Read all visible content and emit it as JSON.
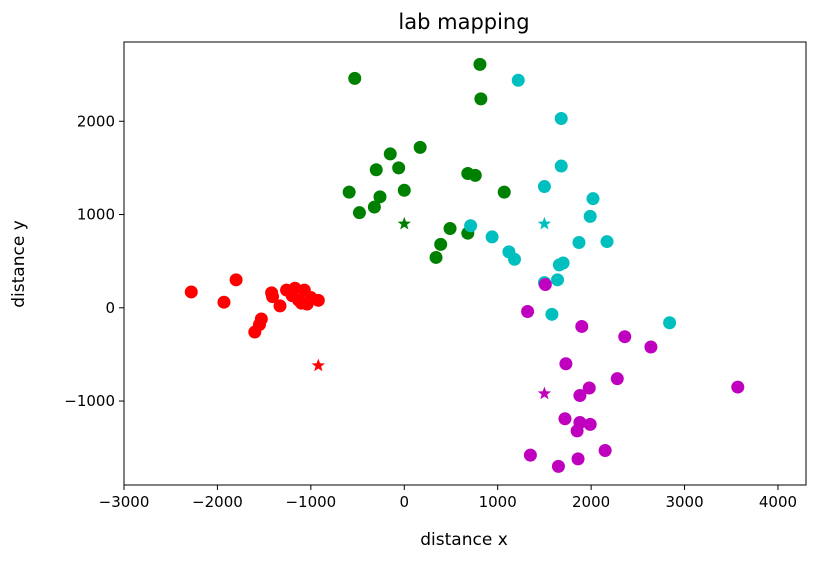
{
  "chart_data": {
    "type": "scatter",
    "title": "lab mapping",
    "xlabel": "distance x",
    "ylabel": "distance y",
    "xlim": [
      -3000,
      4300
    ],
    "ylim": [
      -1900,
      2850
    ],
    "xticks": [
      -3000,
      -2000,
      -1000,
      0,
      1000,
      2000,
      3000,
      4000
    ],
    "yticks": [
      -1000,
      0,
      1000,
      2000
    ],
    "xtick_labels": [
      "−3000",
      "−2000",
      "−1000",
      "0",
      "1000",
      "2000",
      "3000",
      "4000"
    ],
    "ytick_labels": [
      "−1000",
      "0",
      "1000",
      "2000"
    ],
    "grid": false,
    "series": [
      {
        "color": "#ff0000",
        "marker": "circle",
        "points": [
          [
            -2280,
            170
          ],
          [
            -1930,
            60
          ],
          [
            -1800,
            300
          ],
          [
            -1600,
            -260
          ],
          [
            -1550,
            -180
          ],
          [
            -1530,
            -120
          ],
          [
            -1420,
            160
          ],
          [
            -1410,
            120
          ],
          [
            -1330,
            20
          ],
          [
            -1260,
            190
          ],
          [
            -1200,
            130
          ],
          [
            -1170,
            210
          ],
          [
            -1130,
            80
          ],
          [
            -1100,
            50
          ],
          [
            -1070,
            190
          ],
          [
            -1040,
            40
          ],
          [
            -1000,
            110
          ],
          [
            -920,
            80
          ]
        ],
        "centroid": [
          -920,
          -620
        ]
      },
      {
        "color": "#008000",
        "marker": "circle",
        "points": [
          [
            -530,
            2460
          ],
          [
            -590,
            1240
          ],
          [
            -480,
            1020
          ],
          [
            -320,
            1080
          ],
          [
            -300,
            1480
          ],
          [
            -260,
            1190
          ],
          [
            -150,
            1650
          ],
          [
            -60,
            1500
          ],
          [
            0,
            1260
          ],
          [
            170,
            1720
          ],
          [
            340,
            540
          ],
          [
            390,
            680
          ],
          [
            490,
            850
          ],
          [
            680,
            800
          ],
          [
            680,
            1440
          ],
          [
            760,
            1420
          ],
          [
            810,
            2610
          ],
          [
            820,
            2240
          ],
          [
            1070,
            1240
          ]
        ],
        "centroid": [
          0,
          900
        ]
      },
      {
        "color": "#00bfbf",
        "marker": "circle",
        "points": [
          [
            1220,
            2440
          ],
          [
            1680,
            2030
          ],
          [
            1680,
            1520
          ],
          [
            1500,
            1300
          ],
          [
            2020,
            1170
          ],
          [
            1990,
            980
          ],
          [
            710,
            880
          ],
          [
            940,
            760
          ],
          [
            1120,
            600
          ],
          [
            1180,
            520
          ],
          [
            1700,
            480
          ],
          [
            1660,
            460
          ],
          [
            1870,
            700
          ],
          [
            2170,
            710
          ],
          [
            1500,
            270
          ],
          [
            1640,
            300
          ],
          [
            1580,
            -70
          ],
          [
            2840,
            -160
          ]
        ],
        "centroid": [
          1500,
          900
        ]
      },
      {
        "color": "#bf00bf",
        "marker": "circle",
        "points": [
          [
            1510,
            250
          ],
          [
            1320,
            -40
          ],
          [
            1900,
            -200
          ],
          [
            2360,
            -310
          ],
          [
            2640,
            -420
          ],
          [
            1730,
            -600
          ],
          [
            2280,
            -760
          ],
          [
            1980,
            -860
          ],
          [
            1880,
            -940
          ],
          [
            3570,
            -850
          ],
          [
            1720,
            -1190
          ],
          [
            1880,
            -1230
          ],
          [
            1990,
            -1250
          ],
          [
            1850,
            -1320
          ],
          [
            1350,
            -1580
          ],
          [
            1650,
            -1700
          ],
          [
            1860,
            -1620
          ],
          [
            2150,
            -1530
          ]
        ],
        "centroid": [
          1500,
          -920
        ]
      }
    ]
  }
}
